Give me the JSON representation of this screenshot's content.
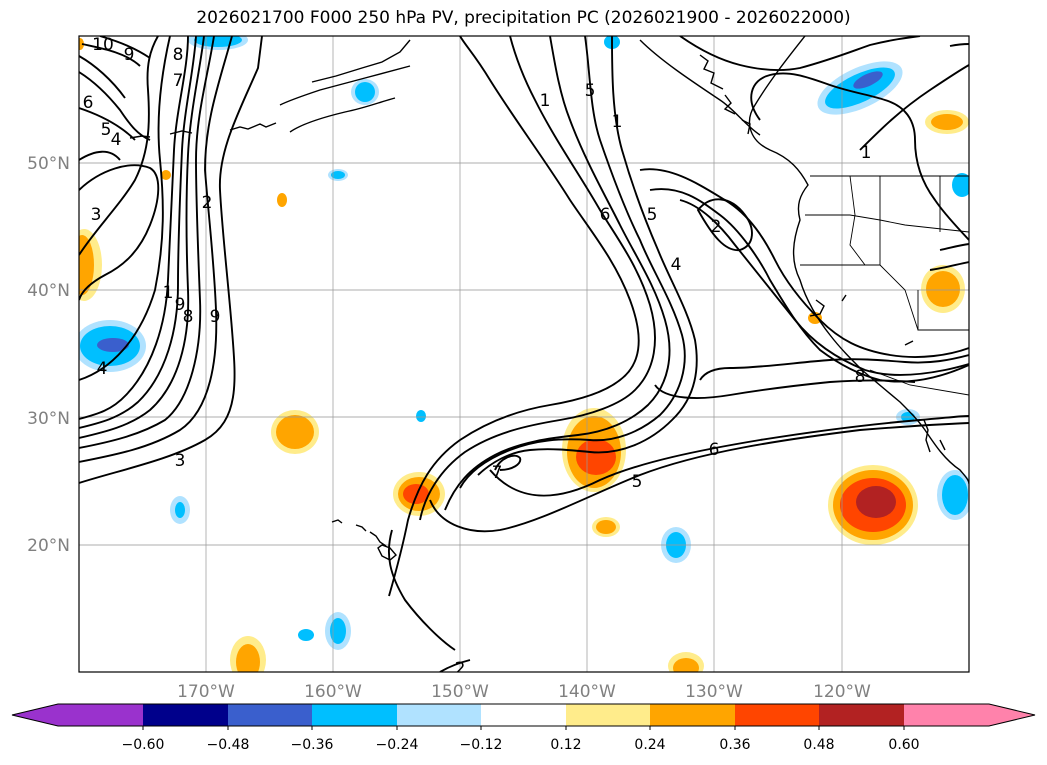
{
  "title": "2026021700 F000 250 hPa PV, precipitation PC (2026021900 - 2026022000)",
  "map": {
    "lon_range": [
      -180,
      -110
    ],
    "lat_range": [
      10,
      60
    ],
    "lat_ticks": [
      "20°N",
      "30°N",
      "40°N",
      "50°N"
    ],
    "lon_ticks": [
      "170°W",
      "160°W",
      "150°W",
      "140°W",
      "130°W",
      "120°W"
    ],
    "grid": true,
    "land_outline": "black coastlines and state borders",
    "pv_contour_labels": [
      "10",
      "9",
      "8",
      "7",
      "6",
      "5",
      "4",
      "3",
      "2",
      "1",
      "9",
      "8",
      "9",
      "4",
      "3",
      "7",
      "5",
      "6",
      "2",
      "1",
      "5",
      "1",
      "6",
      "5",
      "4",
      "2",
      "1",
      "8",
      "5",
      "1",
      "9",
      "1"
    ]
  },
  "colorbar": {
    "ticks": [
      "−0.60",
      "−0.48",
      "−0.36",
      "−0.24",
      "−0.12",
      "0.12",
      "0.24",
      "0.36",
      "0.48",
      "0.60"
    ],
    "colors": [
      "#9a32cd",
      "#00008b",
      "#3a5fcd",
      "#00bfff",
      "#b0e2ff",
      "#ffffff",
      "#ffec8b",
      "#ffa500",
      "#ff4500",
      "#b22222",
      "#ff82ab"
    ],
    "extend": "both"
  }
}
